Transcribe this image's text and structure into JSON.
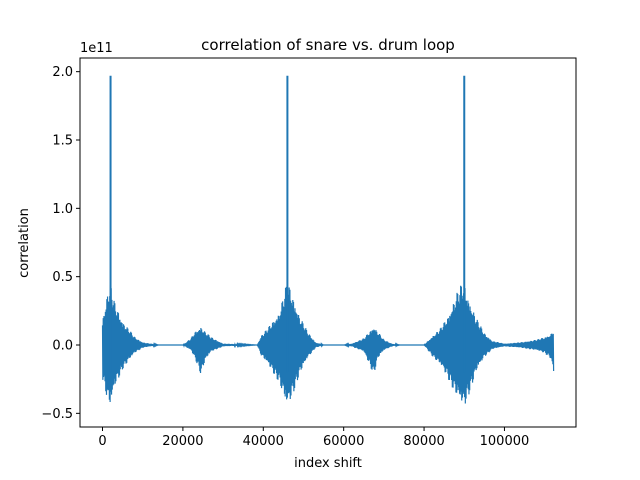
{
  "chart_data": {
    "type": "line",
    "title": "correlation of snare vs. drum loop",
    "xlabel": "index shift",
    "ylabel": "correlation",
    "y_offset_label": "1e11",
    "y_scale": 100000000000,
    "xlim": [
      -5600,
      117800
    ],
    "ylim": [
      -0.6,
      2.1
    ],
    "x_ticks": [
      0,
      20000,
      40000,
      60000,
      80000,
      100000
    ],
    "y_ticks": [
      -0.5,
      0.0,
      0.5,
      1.0,
      1.5,
      2.0
    ],
    "x_tick_labels": [
      "0",
      "20000",
      "40000",
      "60000",
      "80000",
      "100000"
    ],
    "y_tick_labels": [
      "−0.5",
      "0.0",
      "0.5",
      "1.0",
      "1.5",
      "2.0"
    ],
    "grid": false,
    "line_color": "#1f77b4",
    "series": [
      {
        "peaks_x": [
          2000,
          46000,
          90000
        ],
        "peak_value": 1.97,
        "envelope_x": [
          0,
          1500,
          2000,
          3000,
          5000,
          8000,
          10000,
          14000,
          17000,
          20000,
          22000,
          23000,
          24500,
          25500,
          27000,
          30000,
          38500,
          39500,
          41000,
          44000,
          45500,
          46000,
          47000,
          49000,
          51000,
          53000,
          55000,
          60000,
          62000,
          65000,
          67500,
          68500,
          70000,
          72000,
          74000,
          80000,
          82500,
          84000,
          86000,
          88000,
          89500,
          90000,
          91000,
          93000,
          95000,
          97000,
          100000,
          104000,
          108000,
          110000,
          111500,
          112300
        ],
        "envelope_upper": [
          0.2,
          0.42,
          0.45,
          0.32,
          0.18,
          0.06,
          0.02,
          0.0,
          0.0,
          0.0,
          0.05,
          0.1,
          0.14,
          0.1,
          0.06,
          0.01,
          0.0,
          0.07,
          0.12,
          0.25,
          0.42,
          0.47,
          0.4,
          0.22,
          0.1,
          0.02,
          0.0,
          0.0,
          0.01,
          0.05,
          0.14,
          0.1,
          0.04,
          0.01,
          0.0,
          0.0,
          0.08,
          0.12,
          0.22,
          0.38,
          0.46,
          0.47,
          0.36,
          0.2,
          0.09,
          0.03,
          0.01,
          0.02,
          0.04,
          0.06,
          0.08,
          0.12
        ],
        "envelope_lower": [
          -0.25,
          -0.45,
          -0.47,
          -0.32,
          -0.18,
          -0.06,
          -0.02,
          0.0,
          0.0,
          0.0,
          -0.04,
          -0.1,
          -0.22,
          -0.12,
          -0.05,
          -0.01,
          0.0,
          -0.08,
          -0.14,
          -0.28,
          -0.44,
          -0.47,
          -0.4,
          -0.22,
          -0.1,
          -0.02,
          0.0,
          0.0,
          -0.01,
          -0.05,
          -0.22,
          -0.1,
          -0.04,
          -0.01,
          0.0,
          0.0,
          -0.1,
          -0.15,
          -0.25,
          -0.38,
          -0.46,
          -0.47,
          -0.38,
          -0.2,
          -0.09,
          -0.03,
          -0.01,
          -0.02,
          -0.04,
          -0.06,
          -0.1,
          -0.22
        ]
      }
    ]
  }
}
